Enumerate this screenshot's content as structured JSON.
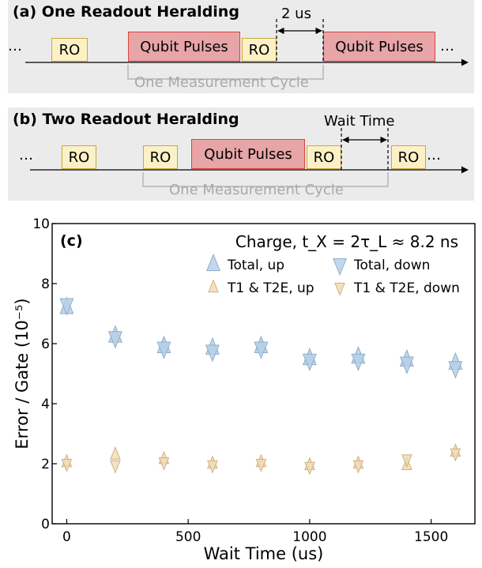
{
  "panel_a": {
    "title": "(a) One Readout Heralding",
    "ellipsis_left": "…",
    "ellipsis_right": "…",
    "ro_label": "RO",
    "qubit_pulses_label": "Qubit Pulses",
    "gap_label": "2 us",
    "cycle_label": "One Measurement Cycle"
  },
  "panel_b": {
    "title": "(b) Two Readout Heralding",
    "ellipsis_left": "…",
    "ellipsis_right": "…",
    "ro_label": "RO",
    "qubit_pulses_label": "Qubit Pulses",
    "gap_label": "Wait Time",
    "cycle_label": "One Measurement Cycle"
  },
  "colors": {
    "ro_fill": "#fcf1c6",
    "ro_border": "#c7a93c",
    "qp_fill": "#e7a5a7",
    "qp_border": "#d9453f",
    "total_fill": "#b7d0e8",
    "total_edge": "#8eaecb",
    "t1t2_fill": "#f2dcb5",
    "t1t2_edge": "#cdb183"
  },
  "chart_data": {
    "type": "scatter",
    "panel_label": "(c)",
    "title": "Charge, t_X = 2τ_L ≈ 8.2 ns",
    "xlabel": "Wait Time (us)",
    "ylabel": "Error / Gate (10⁻⁵)",
    "xlim": [
      -60,
      1680
    ],
    "ylim": [
      0,
      10
    ],
    "xticks": [
      0,
      500,
      1000,
      1500
    ],
    "yticks": [
      0,
      2,
      4,
      6,
      8,
      10
    ],
    "legend_position": "top-right",
    "series": [
      {
        "name": "Total, up",
        "marker": "triangle-up",
        "x": [
          0,
          200,
          400,
          600,
          800,
          1000,
          1200,
          1400,
          1600
        ],
        "y": [
          7.2,
          6.25,
          5.9,
          5.85,
          5.9,
          5.5,
          5.55,
          5.45,
          5.35
        ]
      },
      {
        "name": "Total, down",
        "marker": "triangle-down",
        "x": [
          0,
          200,
          400,
          600,
          800,
          1000,
          1200,
          1400,
          1600
        ],
        "y": [
          7.3,
          6.2,
          5.85,
          5.75,
          5.85,
          5.45,
          5.45,
          5.35,
          5.2
        ]
      },
      {
        "name": "T1 & T2E, up",
        "marker": "triangle-up",
        "x": [
          0,
          200,
          400,
          600,
          800,
          1000,
          1200,
          1400,
          1600
        ],
        "y": [
          2.05,
          2.3,
          2.15,
          2.0,
          2.05,
          1.95,
          2.0,
          1.95,
          2.4
        ]
      },
      {
        "name": "T1 & T2E, down",
        "marker": "triangle-down",
        "x": [
          0,
          200,
          400,
          600,
          800,
          1000,
          1200,
          1400,
          1600
        ],
        "y": [
          2.0,
          1.95,
          2.05,
          1.95,
          2.0,
          1.9,
          1.95,
          2.15,
          2.35
        ]
      }
    ]
  }
}
